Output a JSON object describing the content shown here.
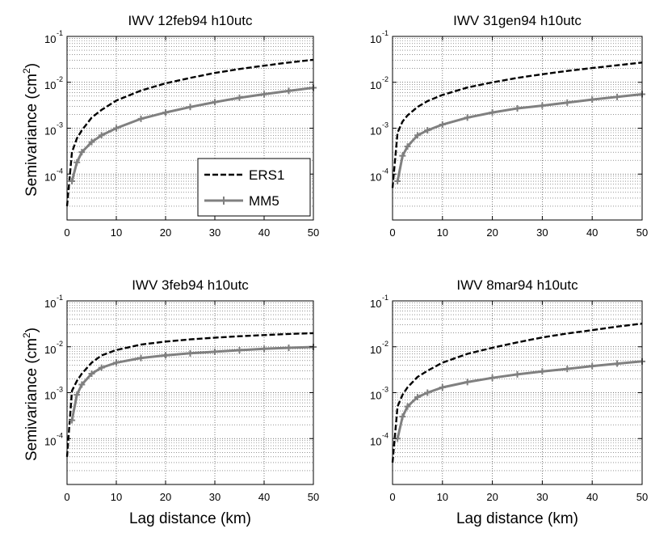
{
  "chart_data": [
    {
      "type": "line",
      "title": "IWV 12feb94 h10utc",
      "ylabel": "Semivariance (cm",
      "ylabel_sup": "2",
      "ylabel_end": ")",
      "xlabel": "",
      "xlim": [
        0,
        50
      ],
      "ylim": [
        1e-05,
        0.1
      ],
      "yscale": "log",
      "grid": true,
      "legend_position": "bottom-right",
      "series": [
        {
          "name": "ERS1",
          "color": "#000000",
          "dash": "dashed",
          "marker": "none",
          "x": [
            0,
            1,
            2,
            3,
            5,
            7,
            10,
            15,
            20,
            25,
            30,
            35,
            40,
            45,
            50
          ],
          "y": [
            2e-05,
            0.0003,
            0.0006,
            0.0009,
            0.0017,
            0.0025,
            0.004,
            0.0066,
            0.0095,
            0.0125,
            0.016,
            0.0195,
            0.023,
            0.027,
            0.031
          ]
        },
        {
          "name": "MM5",
          "color": "#808080",
          "dash": "solid",
          "marker": "plus",
          "x": [
            1,
            2,
            3,
            5,
            7,
            10,
            15,
            20,
            25,
            30,
            35,
            40,
            45,
            50
          ],
          "y": [
            7e-05,
            0.00018,
            0.0003,
            0.0005,
            0.0007,
            0.001,
            0.0016,
            0.0022,
            0.0029,
            0.0037,
            0.0046,
            0.0055,
            0.0065,
            0.0076
          ]
        }
      ]
    },
    {
      "type": "line",
      "title": "IWV 31gen94 h10utc",
      "xlabel": "",
      "xlim": [
        0,
        50
      ],
      "ylim": [
        1e-05,
        0.1
      ],
      "yscale": "log",
      "grid": true,
      "series": [
        {
          "name": "ERS1",
          "color": "#000000",
          "dash": "dashed",
          "marker": "none",
          "x": [
            0,
            1,
            2,
            3,
            5,
            7,
            10,
            15,
            20,
            25,
            30,
            35,
            40,
            45,
            50
          ],
          "y": [
            5e-05,
            0.0008,
            0.0014,
            0.0019,
            0.0029,
            0.0039,
            0.0053,
            0.0077,
            0.01,
            0.0125,
            0.015,
            0.0177,
            0.0205,
            0.0235,
            0.027
          ]
        },
        {
          "name": "MM5",
          "color": "#808080",
          "dash": "solid",
          "marker": "plus",
          "x": [
            1,
            2,
            3,
            5,
            7,
            10,
            15,
            20,
            25,
            30,
            35,
            40,
            45,
            50
          ],
          "y": [
            7e-05,
            0.00025,
            0.0004,
            0.0007,
            0.0009,
            0.0012,
            0.0017,
            0.0022,
            0.0027,
            0.0031,
            0.0036,
            0.0042,
            0.0048,
            0.0055
          ]
        }
      ]
    },
    {
      "type": "line",
      "title": "IWV 3feb94 h10utc",
      "ylabel": "Semivariance (cm",
      "ylabel_sup": "2",
      "ylabel_end": ")",
      "xlabel": "Lag distance (km)",
      "xlim": [
        0,
        50
      ],
      "ylim": [
        1e-05,
        0.1
      ],
      "yscale": "log",
      "grid": true,
      "series": [
        {
          "name": "ERS1",
          "color": "#000000",
          "dash": "dashed",
          "marker": "none",
          "x": [
            0,
            1,
            2,
            3,
            5,
            7,
            10,
            15,
            20,
            25,
            30,
            35,
            40,
            45,
            50
          ],
          "y": [
            4e-05,
            0.0011,
            0.0018,
            0.0026,
            0.0045,
            0.0065,
            0.0085,
            0.0112,
            0.013,
            0.0145,
            0.0158,
            0.017,
            0.018,
            0.019,
            0.0198
          ]
        },
        {
          "name": "MM5",
          "color": "#808080",
          "dash": "solid",
          "marker": "plus",
          "x": [
            1,
            2,
            3,
            5,
            7,
            10,
            15,
            20,
            25,
            30,
            35,
            40,
            45,
            50
          ],
          "y": [
            0.00025,
            0.0009,
            0.0015,
            0.0026,
            0.0035,
            0.0045,
            0.0057,
            0.0065,
            0.0072,
            0.0078,
            0.0084,
            0.009,
            0.0095,
            0.0099
          ]
        }
      ]
    },
    {
      "type": "line",
      "title": "IWV 8mar94 h10utc",
      "xlabel": "Lag distance (km)",
      "xlim": [
        0,
        50
      ],
      "ylim": [
        1e-05,
        0.1
      ],
      "yscale": "log",
      "grid": true,
      "series": [
        {
          "name": "ERS1",
          "color": "#000000",
          "dash": "dashed",
          "marker": "none",
          "x": [
            0,
            1,
            2,
            3,
            5,
            7,
            10,
            15,
            20,
            25,
            30,
            35,
            40,
            45,
            50
          ],
          "y": [
            3e-05,
            0.0005,
            0.0009,
            0.0013,
            0.0022,
            0.003,
            0.0045,
            0.007,
            0.0095,
            0.0125,
            0.016,
            0.0195,
            0.023,
            0.0275,
            0.032
          ]
        },
        {
          "name": "MM5",
          "color": "#808080",
          "dash": "solid",
          "marker": "plus",
          "x": [
            1,
            2,
            3,
            5,
            7,
            10,
            15,
            20,
            25,
            30,
            35,
            40,
            45,
            50
          ],
          "y": [
            0.0001,
            0.0003,
            0.0005,
            0.0008,
            0.001,
            0.0013,
            0.0017,
            0.0021,
            0.0025,
            0.0029,
            0.0033,
            0.0038,
            0.0043,
            0.0048
          ]
        }
      ]
    }
  ],
  "axes": {
    "x_ticks": [
      "0",
      "10",
      "20",
      "30",
      "40",
      "50"
    ],
    "y_tick_base": "10",
    "y_tick_exps": [
      "-1",
      "-2",
      "-3",
      "-4"
    ]
  },
  "legend": {
    "items": [
      "ERS1",
      "MM5"
    ]
  }
}
